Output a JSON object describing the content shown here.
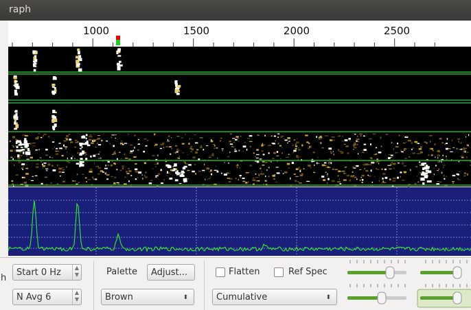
{
  "window": {
    "title": "raph"
  },
  "scale": {
    "labels": [
      "1000",
      "1500",
      "2000",
      "2500"
    ]
  },
  "controls": {
    "start": "Start 0 Hz",
    "navg": "N Avg 6",
    "palette_label": "Palette",
    "adjust": "Adjust...",
    "palette": "Brown",
    "flatten": "Flatten",
    "ref_spec": "Ref Spec",
    "mode": "Cumulative"
  },
  "side_label": "h"
}
